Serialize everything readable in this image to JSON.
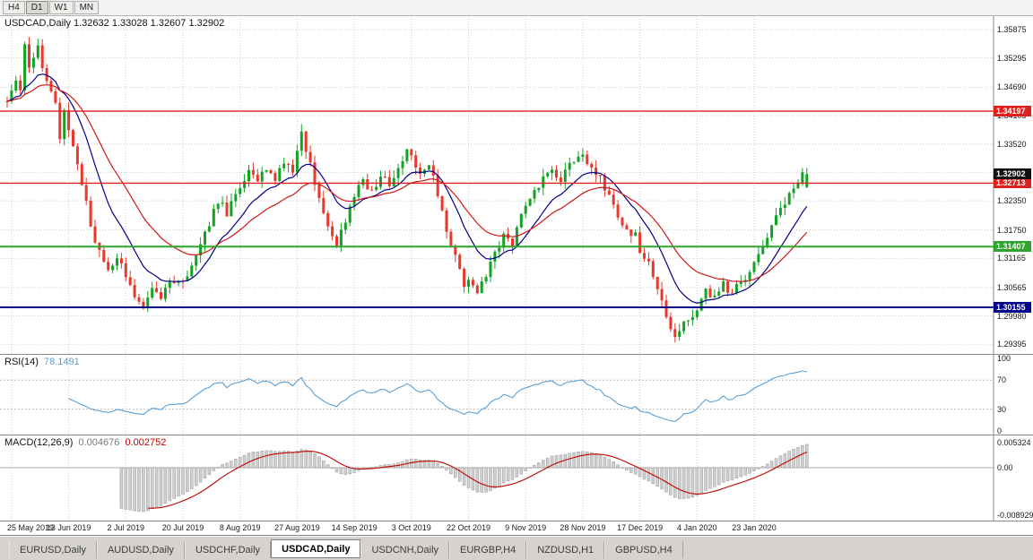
{
  "toolbar": {
    "periods": [
      {
        "label": "H4",
        "active": false
      },
      {
        "label": "D1",
        "active": true
      },
      {
        "label": "W1",
        "active": false
      },
      {
        "label": "MN",
        "active": false
      }
    ]
  },
  "chart_data": {
    "type": "candlestick",
    "symbol": "USDCAD",
    "timeframe": "Daily",
    "title": "USDCAD,Daily 1.32632 1.33028 1.32607 1.32902",
    "quote": {
      "open": 1.32632,
      "high": 1.33028,
      "low": 1.32607,
      "close": 1.32902
    },
    "y_axis": {
      "range": [
        1.2927,
        1.3608
      ],
      "ticks": [
        "1.35875",
        "1.35295",
        "1.34690",
        "1.34105",
        "1.33520",
        "1.32935",
        "1.32350",
        "1.31750",
        "1.31165",
        "1.30565",
        "1.29980",
        "1.29395"
      ]
    },
    "x_axis": {
      "labels": [
        {
          "bar": 1,
          "text": "25 May 2019"
        },
        {
          "bar": 14,
          "text": "13 Jun 2019"
        },
        {
          "bar": 27,
          "text": "2 Jul 2019"
        },
        {
          "bar": 40,
          "text": "20 Jul 2019"
        },
        {
          "bar": 53,
          "text": "8 Aug 2019"
        },
        {
          "bar": 66,
          "text": "27 Aug 2019"
        },
        {
          "bar": 79,
          "text": "14 Sep 2019"
        },
        {
          "bar": 92,
          "text": "3 Oct 2019"
        },
        {
          "bar": 105,
          "text": "22 Oct 2019"
        },
        {
          "bar": 118,
          "text": "9 Nov 2019"
        },
        {
          "bar": 131,
          "text": "28 Nov 2019"
        },
        {
          "bar": 144,
          "text": "17 Dec 2019"
        },
        {
          "bar": 157,
          "text": "4 Jan 2020"
        },
        {
          "bar": 170,
          "text": "23 Jan 2020"
        }
      ]
    },
    "candles": {
      "count": 183,
      "bull_color": "#12a325",
      "bear_color": "#e6392b",
      "price_path": [
        [
          0,
          1.3445
        ],
        [
          2,
          1.348
        ],
        [
          3,
          1.3455
        ],
        [
          4,
          1.356
        ],
        [
          5,
          1.351
        ],
        [
          7,
          1.3555
        ],
        [
          9,
          1.348
        ],
        [
          11,
          1.344
        ],
        [
          12,
          1.337
        ],
        [
          13,
          1.343
        ],
        [
          15,
          1.334
        ],
        [
          17,
          1.327
        ],
        [
          19,
          1.3185
        ],
        [
          21,
          1.313
        ],
        [
          23,
          1.309
        ],
        [
          25,
          1.3115
        ],
        [
          27,
          1.3085
        ],
        [
          29,
          1.304
        ],
        [
          31,
          1.3022
        ],
        [
          33,
          1.306
        ],
        [
          35,
          1.3035
        ],
        [
          37,
          1.3072
        ],
        [
          40,
          1.3065
        ],
        [
          42,
          1.311
        ],
        [
          44,
          1.3145
        ],
        [
          46,
          1.319
        ],
        [
          48,
          1.3235
        ],
        [
          50,
          1.321
        ],
        [
          53,
          1.3258
        ],
        [
          55,
          1.3292
        ],
        [
          57,
          1.3268
        ],
        [
          59,
          1.3305
        ],
        [
          61,
          1.328
        ],
        [
          63,
          1.3312
        ],
        [
          65,
          1.329
        ],
        [
          67,
          1.3378
        ],
        [
          69,
          1.3308
        ],
        [
          71,
          1.324
        ],
        [
          73,
          1.318
        ],
        [
          75,
          1.3148
        ],
        [
          77,
          1.319
        ],
        [
          79,
          1.3245
        ],
        [
          81,
          1.3272
        ],
        [
          83,
          1.3252
        ],
        [
          85,
          1.329
        ],
        [
          87,
          1.3262
        ],
        [
          89,
          1.3305
        ],
        [
          91,
          1.3332
        ],
        [
          92,
          1.332
        ],
        [
          94,
          1.329
        ],
        [
          96,
          1.3308
        ],
        [
          98,
          1.325
        ],
        [
          100,
          1.318
        ],
        [
          102,
          1.312
        ],
        [
          104,
          1.3062
        ],
        [
          105,
          1.3078
        ],
        [
          107,
          1.3044
        ],
        [
          109,
          1.3082
        ],
        [
          111,
          1.313
        ],
        [
          113,
          1.3162
        ],
        [
          115,
          1.3146
        ],
        [
          117,
          1.32
        ],
        [
          118,
          1.3228
        ],
        [
          120,
          1.3252
        ],
        [
          122,
          1.328
        ],
        [
          124,
          1.3302
        ],
        [
          126,
          1.3272
        ],
        [
          128,
          1.331
        ],
        [
          131,
          1.333
        ],
        [
          133,
          1.3302
        ],
        [
          135,
          1.3282
        ],
        [
          137,
          1.3242
        ],
        [
          139,
          1.3202
        ],
        [
          141,
          1.3172
        ],
        [
          143,
          1.3162
        ],
        [
          144,
          1.3132
        ],
        [
          146,
          1.3102
        ],
        [
          148,
          1.3052
        ],
        [
          150,
          1.2992
        ],
        [
          152,
          1.296
        ],
        [
          154,
          1.2986
        ],
        [
          156,
          1.3002
        ],
        [
          157,
          1.3012
        ],
        [
          159,
          1.305
        ],
        [
          161,
          1.3032
        ],
        [
          163,
          1.3062
        ],
        [
          165,
          1.3046
        ],
        [
          167,
          1.3072
        ],
        [
          169,
          1.3082
        ],
        [
          170,
          1.311
        ],
        [
          172,
          1.3142
        ],
        [
          174,
          1.3176
        ],
        [
          176,
          1.3216
        ],
        [
          178,
          1.3252
        ],
        [
          180,
          1.3282
        ],
        [
          182,
          1.32902
        ]
      ]
    },
    "levels": [
      {
        "price": 1.34197,
        "label": "1.34197",
        "color": "#e01f1f",
        "width": 1.4
      },
      {
        "price": 1.32713,
        "label": "1.32713",
        "color": "#e01f1f",
        "width": 1.4
      },
      {
        "price": 1.31407,
        "label": "1.31407",
        "color": "#2fa52f",
        "width": 2
      },
      {
        "price": 1.30155,
        "label": "1.30155",
        "color": "#00008b",
        "width": 2
      }
    ],
    "current_price": {
      "price": 1.32902,
      "label": "1.32902",
      "color": "#111111"
    },
    "moving_averages": [
      {
        "type": "ema",
        "period": 12,
        "color": "#00008b"
      },
      {
        "type": "ema",
        "period": 26,
        "color": "#d01818"
      }
    ],
    "indicators": {
      "rsi": {
        "name": "RSI(14)",
        "value": "78.1491",
        "period": 14,
        "line_color": "#5a9fd4",
        "axis": [
          "100",
          "70",
          "30",
          "0"
        ],
        "guides": [
          70,
          30
        ]
      },
      "macd": {
        "name": "MACD(12,26,9)",
        "value_macd": "0.004676",
        "value_signal": "0.002752",
        "fast": 12,
        "slow": 26,
        "signal": 9,
        "hist_fill": "#cfcfcf",
        "hist_border": "#9b9b9b",
        "signal_color": "#c00000",
        "axis_top": "0.005324",
        "axis_zero": "0.00",
        "axis_bottom": "-0.008929"
      }
    }
  },
  "tabs": {
    "items": [
      {
        "label": "EURUSD,Daily",
        "active": false
      },
      {
        "label": "AUDUSD,Daily",
        "active": false
      },
      {
        "label": "USDCHF,Daily",
        "active": false
      },
      {
        "label": "USDCAD,Daily",
        "active": true
      },
      {
        "label": "USDCNH,Daily",
        "active": false
      },
      {
        "label": "EURGBP,H4",
        "active": false
      },
      {
        "label": "NZDUSD,H1",
        "active": false
      },
      {
        "label": "GBPUSD,H4",
        "active": false
      }
    ]
  }
}
